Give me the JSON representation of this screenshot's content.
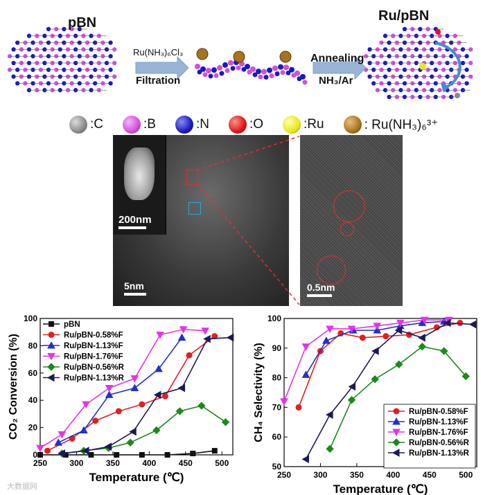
{
  "scheme": {
    "left_label": "pBN",
    "right_label": "Ru/pBN",
    "step1_top": "Ru(NH₃)₆Cl₃",
    "step1_bottom": "Filtration",
    "step2_top": "Annealing",
    "step2_bottom": "NH₃/Ar"
  },
  "atom_legend": [
    {
      "label": ":C",
      "color": "#8a8a8a"
    },
    {
      "label": ":B",
      "color": "#d24fd8"
    },
    {
      "label": ":N",
      "color": "#1a1ac0"
    },
    {
      "label": ":O",
      "color": "#e01515"
    },
    {
      "label": ":Ru",
      "color": "#e8e81a"
    },
    {
      "label": ": Ru(NH₃)₆³⁺",
      "color": "#a8731e"
    }
  ],
  "micrographs": {
    "inset_scale": "200nm",
    "main_scale": "5nm",
    "zoom_scale": "0.5nm"
  },
  "watermark": "大数据网",
  "chart_data": [
    {
      "type": "line",
      "xlabel": "Temperature (℃)",
      "ylabel": "CO₂ Conversion (%)",
      "xlim": [
        250,
        515
      ],
      "ylim": [
        0,
        100
      ],
      "xticks": [
        250,
        300,
        350,
        400,
        450,
        500
      ],
      "yticks": [
        0,
        20,
        40,
        60,
        80,
        100
      ],
      "legend_position": "top-left",
      "series": [
        {
          "name": "pBN",
          "color": "#111111",
          "marker": "square",
          "x": [
            250,
            285,
            320,
            355,
            390,
            425,
            460,
            490
          ],
          "y": [
            0,
            0,
            0,
            0,
            0,
            0,
            1,
            3
          ]
        },
        {
          "name": "Ru/pBN-0.58%F",
          "color": "#e02020",
          "marker": "circle",
          "x": [
            260,
            294,
            326,
            358,
            390,
            422,
            455,
            490
          ],
          "y": [
            3,
            12,
            25,
            32,
            37,
            43,
            73,
            87
          ]
        },
        {
          "name": "Ru/pBN-1.13%F",
          "color": "#1f32c8",
          "marker": "triangle-up",
          "x": [
            275,
            310,
            345,
            380,
            413,
            445
          ],
          "y": [
            9,
            18,
            44,
            49,
            63,
            86
          ]
        },
        {
          "name": "Ru/pBN-1.76%F",
          "color": "#e632e6",
          "marker": "triangle-down",
          "x": [
            250,
            280,
            313,
            345,
            380,
            415,
            447,
            477
          ],
          "y": [
            5,
            15,
            37,
            49,
            56,
            88,
            92,
            91
          ]
        },
        {
          "name": "Ru/pBN-0.56%R",
          "color": "#1a8a1a",
          "marker": "diamond",
          "x": [
            280,
            310,
            344,
            374,
            410,
            442,
            472,
            505
          ],
          "y": [
            1,
            3,
            5,
            9,
            18,
            32,
            36,
            24
          ]
        },
        {
          "name": "Ru/pBN-1.13%R",
          "color": "#1a1a5a",
          "marker": "triangle-left",
          "x": [
            280,
            313,
            344,
            378,
            412,
            445,
            480,
            512
          ],
          "y": [
            1,
            3,
            6,
            17,
            44,
            49,
            85,
            86
          ]
        }
      ]
    },
    {
      "type": "line",
      "xlabel": "Temperature (℃)",
      "ylabel": "CH₄ Selectivity (%)",
      "xlim": [
        250,
        515
      ],
      "ylim": [
        50,
        100
      ],
      "xticks": [
        250,
        300,
        350,
        400,
        450,
        500
      ],
      "yticks": [
        50,
        60,
        70,
        80,
        90,
        100
      ],
      "legend_position": "bottom-right",
      "series": [
        {
          "name": "Ru/pBN-0.58%F",
          "color": "#e02020",
          "marker": "circle",
          "x": [
            270,
            300,
            328,
            358,
            390,
            422,
            460,
            492
          ],
          "y": [
            70,
            89,
            95,
            93.5,
            94,
            94.5,
            97,
            98.5
          ]
        },
        {
          "name": "Ru/pBN-1.13%F",
          "color": "#1f32c8",
          "marker": "triangle-up",
          "x": [
            280,
            308,
            345,
            378,
            410,
            440,
            470
          ],
          "y": [
            81,
            92.5,
            96,
            96,
            97.5,
            98.5,
            99
          ]
        },
        {
          "name": "Ru/pBN-1.76%F",
          "color": "#e632e6",
          "marker": "triangle-down",
          "x": [
            250,
            280,
            313,
            343,
            378,
            410,
            443,
            477
          ],
          "y": [
            72,
            90.5,
            96.5,
            96.5,
            97.5,
            98.5,
            99.5,
            99.5
          ]
        },
        {
          "name": "Ru/pBN-0.56%R",
          "color": "#1a8a1a",
          "marker": "diamond",
          "x": [
            313,
            343,
            375,
            408,
            440,
            470,
            500
          ],
          "y": [
            56,
            72.5,
            79.5,
            84.5,
            90.5,
            89,
            80.5
          ]
        },
        {
          "name": "Ru/pBN-1.13%R",
          "color": "#1a1a5a",
          "marker": "triangle-left",
          "x": [
            280,
            313,
            344,
            376,
            408,
            440,
            475,
            510
          ],
          "y": [
            52.5,
            67.5,
            77,
            89,
            96,
            93.5,
            98.5,
            98
          ]
        }
      ]
    }
  ]
}
